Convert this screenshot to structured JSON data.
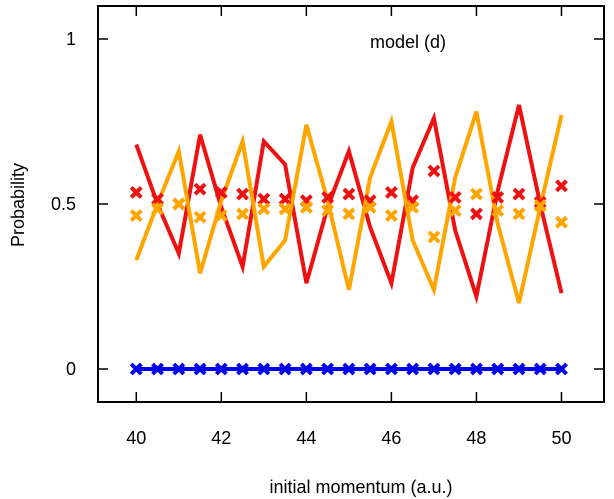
{
  "chart_data": {
    "type": "line",
    "title": "model (d)",
    "xlabel": "initial momentum (a.u.)",
    "ylabel": "Probability",
    "xlim": [
      39.1,
      51
    ],
    "ylim": [
      -0.1,
      1.1
    ],
    "xticks": [
      40,
      42,
      44,
      46,
      48,
      50
    ],
    "xtick_labels": [
      "40",
      "42",
      "44",
      "46",
      "48",
      "50"
    ],
    "yticks": [
      0,
      0.5,
      1
    ],
    "ytick_labels": [
      "0",
      "0.5",
      "1"
    ],
    "grid": false,
    "legend": "none",
    "x": [
      40,
      40.5,
      41,
      41.5,
      42,
      42.5,
      43,
      43.5,
      44,
      44.5,
      45,
      45.5,
      46,
      46.5,
      47,
      47.5,
      48,
      48.5,
      49,
      49.5,
      50
    ],
    "series": [
      {
        "style": "line",
        "color": "#ee1111",
        "values": [
          0.68,
          0.5,
          0.35,
          0.71,
          0.49,
          0.31,
          0.69,
          0.62,
          0.26,
          0.49,
          0.66,
          0.43,
          0.26,
          0.61,
          0.76,
          0.42,
          0.22,
          0.54,
          0.8,
          0.5,
          0.23
        ]
      },
      {
        "style": "line",
        "color": "#ffa500",
        "values": [
          0.33,
          0.5,
          0.66,
          0.29,
          0.51,
          0.69,
          0.31,
          0.39,
          0.74,
          0.51,
          0.24,
          0.58,
          0.75,
          0.39,
          0.24,
          0.58,
          0.78,
          0.44,
          0.2,
          0.49,
          0.77
        ]
      },
      {
        "style": "markers",
        "color": "#ee1111",
        "values": [
          0.535,
          0.515,
          0.5,
          0.545,
          0.535,
          0.53,
          0.515,
          0.515,
          0.51,
          0.52,
          0.53,
          0.51,
          0.535,
          0.51,
          0.6,
          0.52,
          0.47,
          0.52,
          0.53,
          0.505,
          0.555
        ]
      },
      {
        "style": "markers",
        "color": "#ffa500",
        "values": [
          0.465,
          0.485,
          0.5,
          0.46,
          0.465,
          0.47,
          0.485,
          0.485,
          0.49,
          0.48,
          0.47,
          0.49,
          0.465,
          0.49,
          0.4,
          0.48,
          0.53,
          0.48,
          0.47,
          0.495,
          0.445
        ]
      },
      {
        "style": "line+markers",
        "color": "#0000ee",
        "values": [
          0,
          0,
          0,
          0,
          0,
          0,
          0,
          0,
          0,
          0,
          0,
          0,
          0,
          0,
          0,
          0,
          0,
          0,
          0,
          0,
          0
        ]
      }
    ]
  }
}
